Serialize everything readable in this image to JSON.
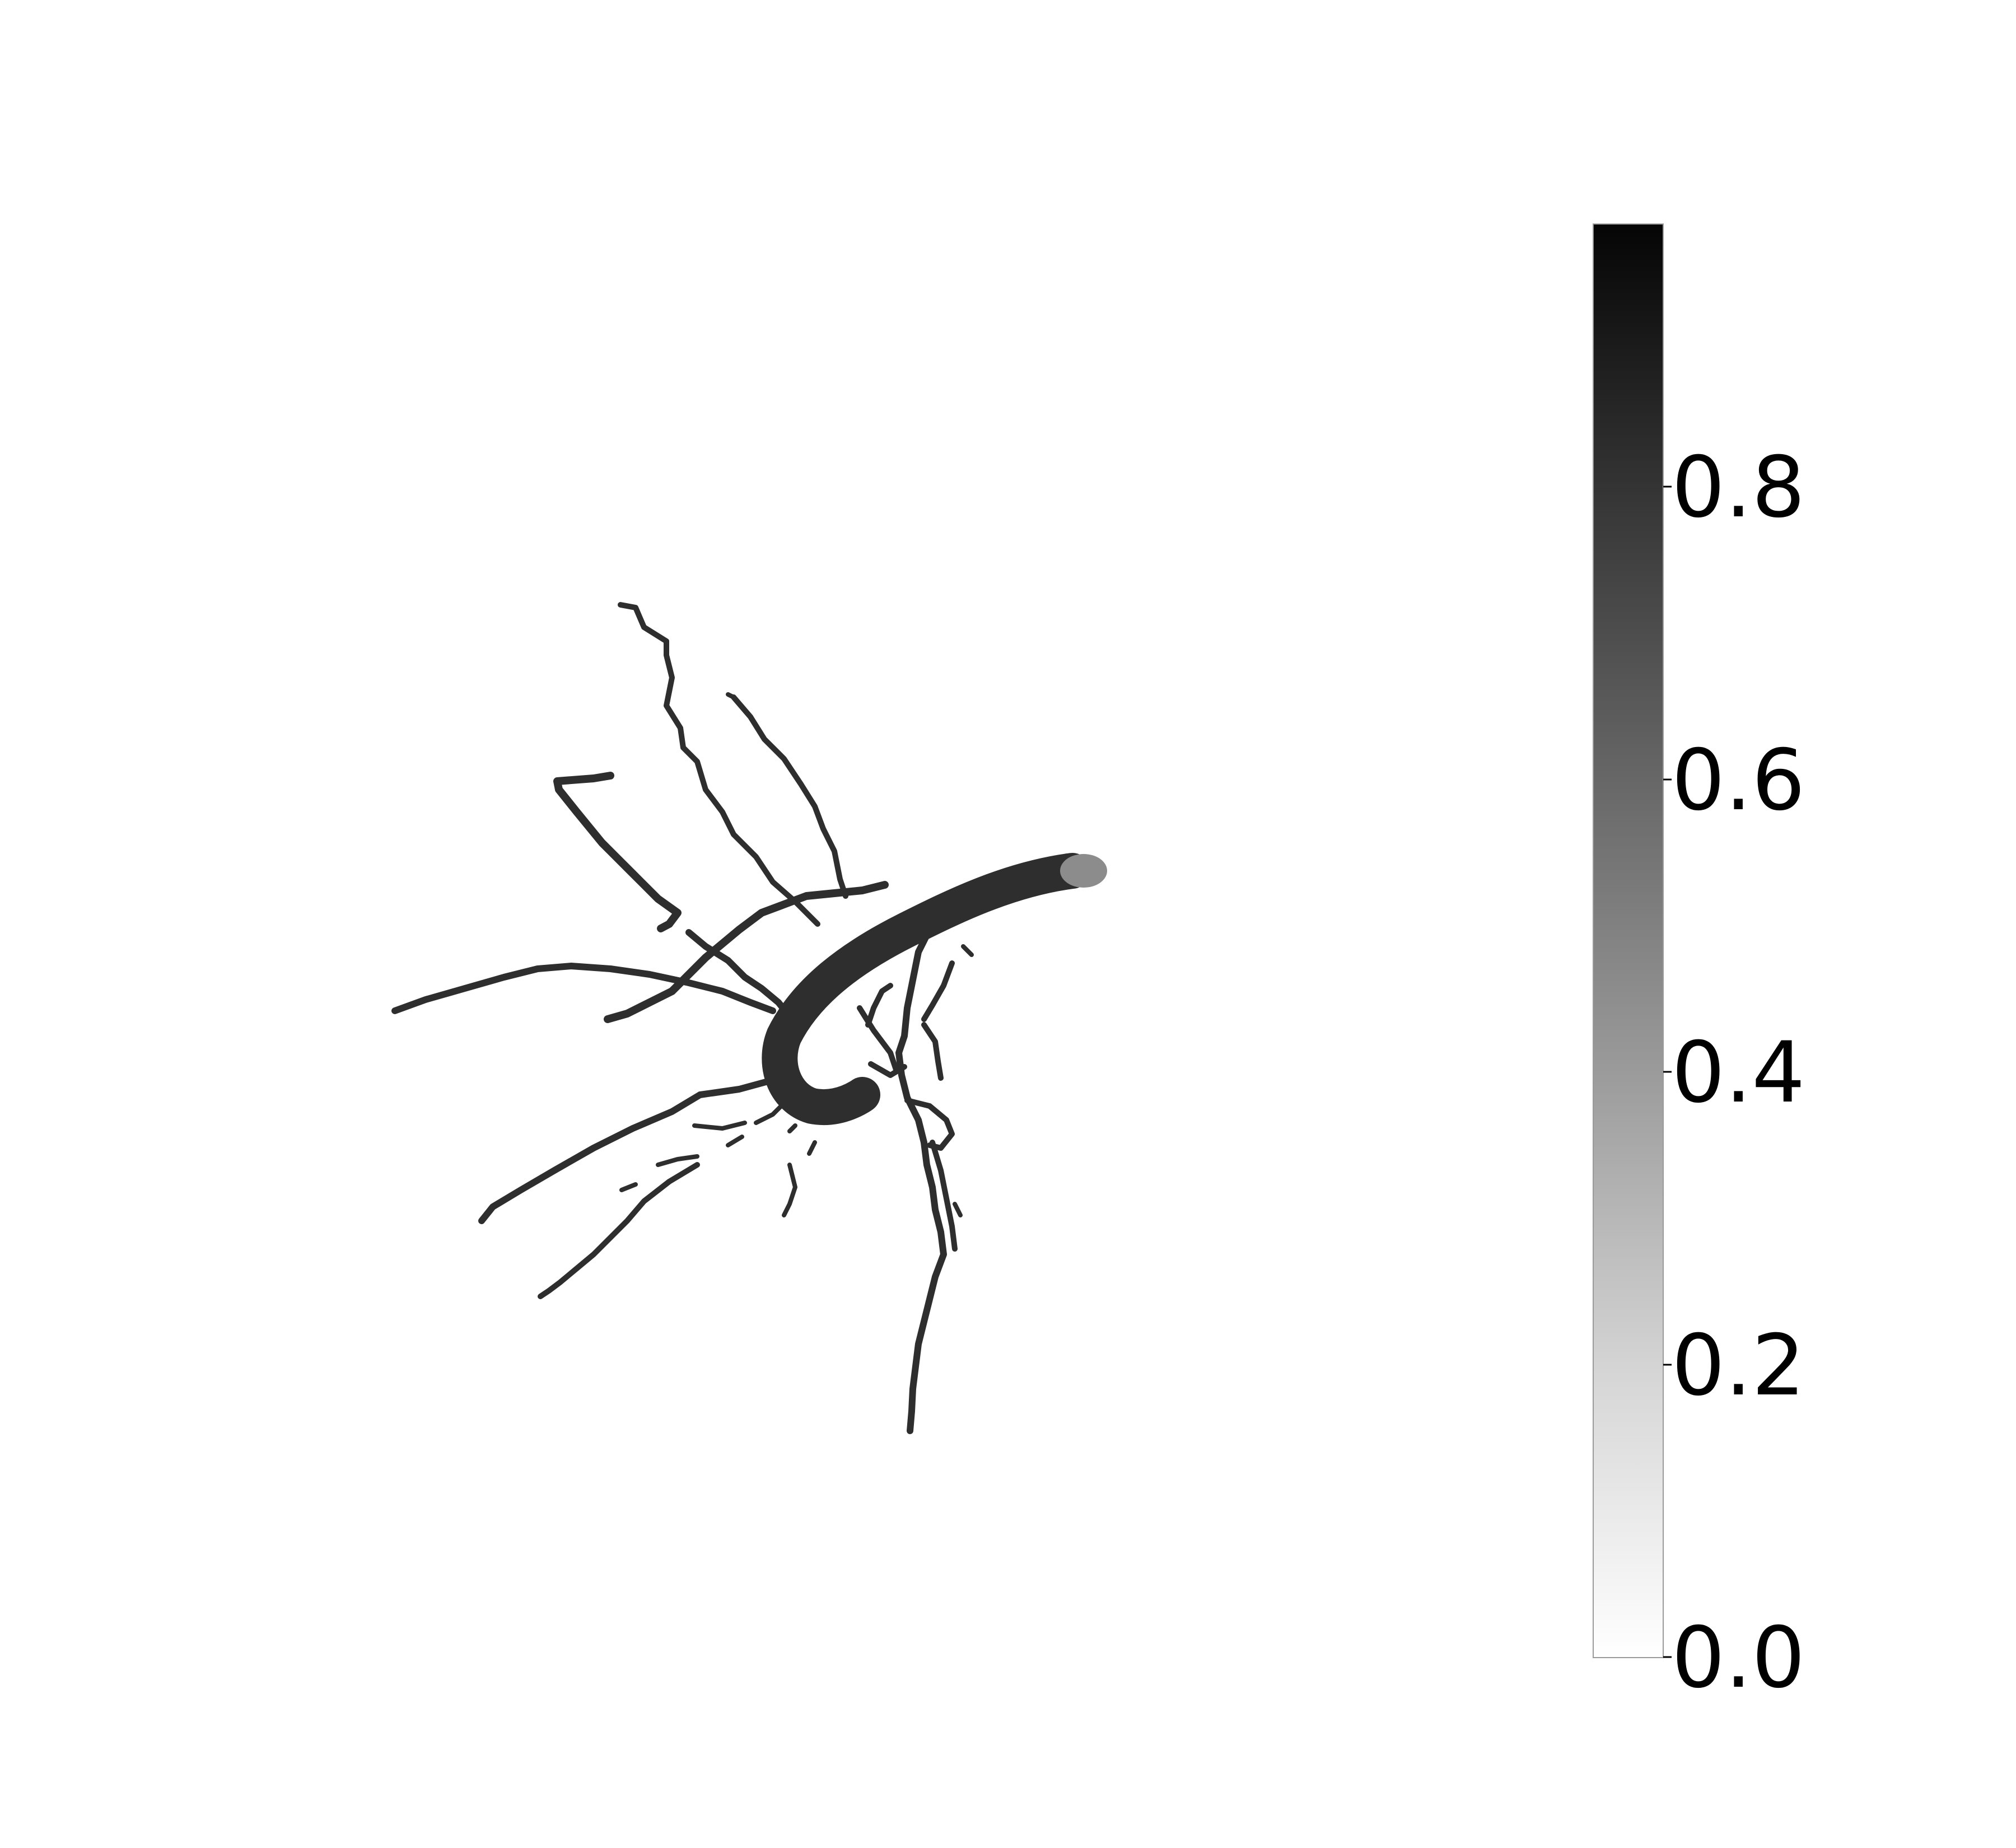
{
  "figure": {
    "type": "grayscale-render",
    "subject": "root-system",
    "background_color": "#ffffff",
    "root_color": "#2e2e2e",
    "colormap": "gray_r"
  },
  "colorbar": {
    "min": 0.0,
    "max": 0.98,
    "orientation": "vertical",
    "placement": "right",
    "ticks": [
      {
        "value": 0.0,
        "label": "0.0"
      },
      {
        "value": 0.2,
        "label": "0.2"
      },
      {
        "value": 0.4,
        "label": "0.4"
      },
      {
        "value": 0.6,
        "label": "0.6"
      },
      {
        "value": 0.8,
        "label": "0.8"
      }
    ]
  }
}
